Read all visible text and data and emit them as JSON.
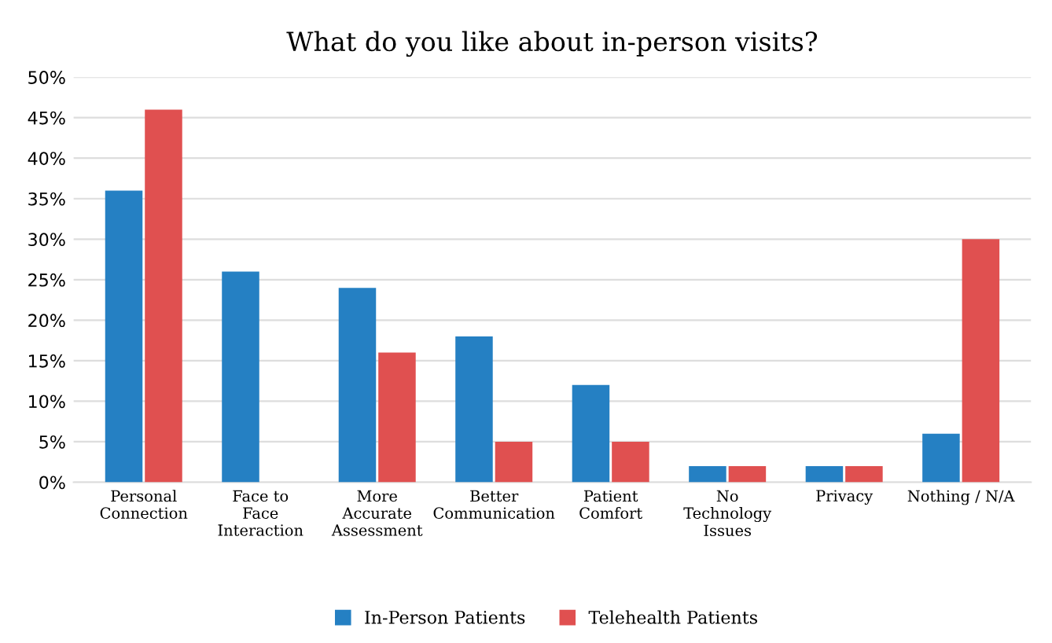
{
  "chart_data": {
    "type": "bar",
    "title": "What do you like about in-person visits?",
    "categories": [
      "Personal\nConnection",
      "Face to\nFace\nInteraction",
      "More\nAccurate\nAssessment",
      "Better\nCommunication",
      "Patient\nComfort",
      "No\nTechnology\nIssues",
      "Privacy",
      "Nothing / N/A"
    ],
    "series": [
      {
        "name": "In-Person Patients",
        "color": "#2580c3",
        "values": [
          36,
          26,
          24,
          18,
          12,
          2,
          2,
          6
        ]
      },
      {
        "name": "Telehealth Patients",
        "color": "#e05050",
        "values": [
          46,
          null,
          16,
          5,
          5,
          2,
          2,
          30
        ]
      }
    ],
    "ylim": [
      0,
      50
    ],
    "yticks": [
      {
        "value": 0,
        "label": "0%"
      },
      {
        "value": 5,
        "label": "5%"
      },
      {
        "value": 10,
        "label": "10%"
      },
      {
        "value": 15,
        "label": "15%"
      },
      {
        "value": 20,
        "label": "20%"
      },
      {
        "value": 25,
        "label": "25%"
      },
      {
        "value": 30,
        "label": "30%"
      },
      {
        "value": 35,
        "label": "35%"
      },
      {
        "value": 40,
        "label": "40%"
      },
      {
        "value": 45,
        "label": "45%"
      },
      {
        "value": 50,
        "label": "50%"
      }
    ],
    "grid": "y",
    "legend": "bottom"
  }
}
